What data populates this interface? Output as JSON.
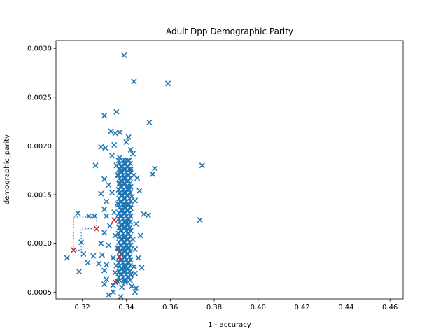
{
  "chart_data": {
    "type": "scatter",
    "title": "Adult Dpp Demographic Parity",
    "xlabel": "1 - accuracy",
    "ylabel": "demographic_parity",
    "xlim": [
      0.308,
      0.466
    ],
    "ylim": [
      0.00043,
      0.00308
    ],
    "x_ticks": [
      0.32,
      0.34,
      0.36,
      0.38,
      0.4,
      0.42,
      0.44,
      0.46
    ],
    "x_tick_labels": [
      "0.32",
      "0.34",
      "0.36",
      "0.38",
      "0.40",
      "0.42",
      "0.44",
      "0.46"
    ],
    "y_ticks": [
      0.0005,
      0.001,
      0.0015,
      0.002,
      0.0025,
      0.003
    ],
    "y_tick_labels": [
      "0.0005",
      "0.0010",
      "0.0015",
      "0.0020",
      "0.0025",
      "0.0030"
    ],
    "marker": "x",
    "grid": false,
    "colors": {
      "points": "#1f77b4",
      "pareto": "#d62728",
      "frontier": "#1f77b4"
    },
    "series": [
      {
        "values": [
          [
            0.339,
            0.00293
          ],
          [
            0.3435,
            0.00266
          ],
          [
            0.359,
            0.00264
          ],
          [
            0.33,
            0.00231
          ],
          [
            0.3355,
            0.00235
          ],
          [
            0.3505,
            0.00224
          ],
          [
            0.333,
            0.00215
          ],
          [
            0.335,
            0.00213
          ],
          [
            0.337,
            0.00214
          ],
          [
            0.341,
            0.00209
          ],
          [
            0.3285,
            0.00199
          ],
          [
            0.3305,
            0.00198
          ],
          [
            0.3345,
            0.00201
          ],
          [
            0.34,
            0.00204
          ],
          [
            0.342,
            0.00196
          ],
          [
            0.3335,
            0.0019
          ],
          [
            0.337,
            0.00188
          ],
          [
            0.3395,
            0.00185
          ],
          [
            0.343,
            0.00192
          ],
          [
            0.326,
            0.0018
          ],
          [
            0.3355,
            0.0018
          ],
          [
            0.3375,
            0.00175
          ],
          [
            0.342,
            0.00176
          ],
          [
            0.3745,
            0.0018
          ],
          [
            0.353,
            0.00177
          ],
          [
            0.352,
            0.00171
          ],
          [
            0.3435,
            0.0017
          ],
          [
            0.336,
            0.0017
          ],
          [
            0.339,
            0.00168
          ],
          [
            0.33,
            0.00166
          ],
          [
            0.345,
            0.00167
          ],
          [
            0.332,
            0.0016
          ],
          [
            0.337,
            0.00162
          ],
          [
            0.341,
            0.00158
          ],
          [
            0.3285,
            0.00151
          ],
          [
            0.3335,
            0.00152
          ],
          [
            0.338,
            0.0015
          ],
          [
            0.3425,
            0.00148
          ],
          [
            0.346,
            0.00154
          ],
          [
            0.331,
            0.00143
          ],
          [
            0.336,
            0.00141
          ],
          [
            0.3395,
            0.0014
          ],
          [
            0.344,
            0.00144
          ],
          [
            0.33,
            0.00135
          ],
          [
            0.3345,
            0.00132
          ],
          [
            0.3385,
            0.00134
          ],
          [
            0.342,
            0.00136
          ],
          [
            0.348,
            0.0013
          ],
          [
            0.35,
            0.00129
          ],
          [
            0.3735,
            0.00124
          ],
          [
            0.318,
            0.00131
          ],
          [
            0.323,
            0.00128
          ],
          [
            0.3255,
            0.00128
          ],
          [
            0.331,
            0.00128
          ],
          [
            0.3365,
            0.00125
          ],
          [
            0.3405,
            0.00122
          ],
          [
            0.3445,
            0.0012
          ],
          [
            0.3325,
            0.00118
          ],
          [
            0.337,
            0.00116
          ],
          [
            0.341,
            0.00114
          ],
          [
            0.33,
            0.00111
          ],
          [
            0.335,
            0.00108
          ],
          [
            0.339,
            0.00106
          ],
          [
            0.343,
            0.00104
          ],
          [
            0.3465,
            0.00108
          ],
          [
            0.3195,
            0.00101
          ],
          [
            0.3285,
            0.001
          ],
          [
            0.332,
            0.00098
          ],
          [
            0.336,
            0.00095
          ],
          [
            0.34,
            0.00097
          ],
          [
            0.344,
            0.00094
          ],
          [
            0.3205,
            0.00089
          ],
          [
            0.325,
            0.00087
          ],
          [
            0.329,
            0.00088
          ],
          [
            0.334,
            0.00085
          ],
          [
            0.338,
            0.00083
          ],
          [
            0.3415,
            0.00086
          ],
          [
            0.3455,
            0.00085
          ],
          [
            0.313,
            0.00085
          ],
          [
            0.3225,
            0.0008
          ],
          [
            0.3275,
            0.00079
          ],
          [
            0.331,
            0.00078
          ],
          [
            0.3355,
            0.00077
          ],
          [
            0.3395,
            0.00075
          ],
          [
            0.3435,
            0.00076
          ],
          [
            0.347,
            0.00075
          ],
          [
            0.3185,
            0.00071
          ],
          [
            0.33,
            0.00072
          ],
          [
            0.335,
            0.0007
          ],
          [
            0.338,
            0.00068
          ],
          [
            0.342,
            0.00067
          ],
          [
            0.344,
            0.00069
          ],
          [
            0.331,
            0.00063
          ],
          [
            0.336,
            0.00061
          ],
          [
            0.3395,
            0.0006
          ],
          [
            0.33,
            0.00058
          ],
          [
            0.334,
            0.00057
          ],
          [
            0.338,
            0.00055
          ],
          [
            0.3425,
            0.00056
          ],
          [
            0.3445,
            0.00054
          ],
          [
            0.332,
            0.00047
          ],
          [
            0.334,
            0.0005
          ],
          [
            0.3375,
            0.00045
          ],
          [
            0.344,
            0.0005
          ]
        ]
      },
      {
        "values": [
          [
            0.316,
            0.00093
          ],
          [
            0.3265,
            0.00115
          ],
          [
            0.3345,
            0.00124
          ],
          [
            0.337,
            0.00091
          ],
          [
            0.337,
            0.00086
          ],
          [
            0.335,
            0.0006
          ]
        ]
      }
    ]
  }
}
